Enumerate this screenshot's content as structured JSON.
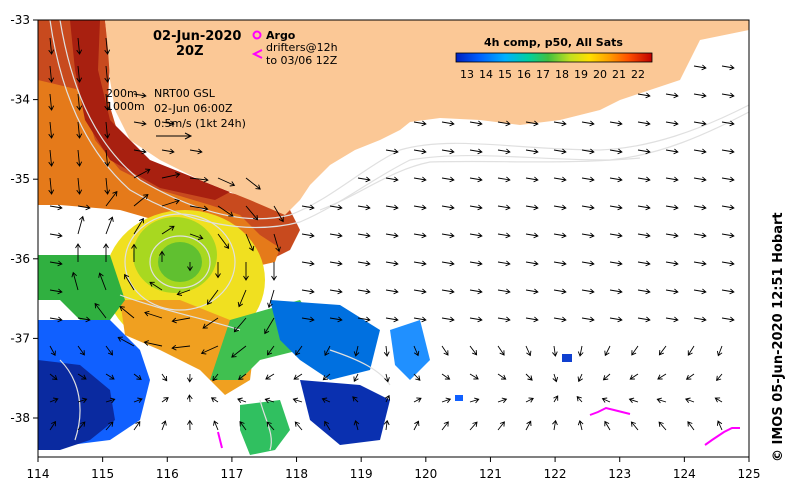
{
  "map": {
    "date_label": "02-Jun-2020",
    "time_label": "20Z",
    "legend_argo": "Argo",
    "legend_drifters_1": "drifters@12h",
    "legend_drifters_2": "to 03/06 12Z",
    "isobath_200": "200m",
    "isobath_1000": "1000m",
    "current_product": "NRT00 GSL",
    "current_time": "02-Jun 06:00Z",
    "vector_scale": "0.5m/s (1kt 24h)",
    "credit": "© IMOS 05-Jun-2020 12:51 Hobart",
    "colors": {
      "land": "#fbc896",
      "frame": "#000000",
      "drifter": "#ff00ff",
      "vector": "#000000"
    }
  },
  "colorbar": {
    "title": "4h comp, p50, All Sats",
    "ticks": [
      "13",
      "14",
      "15",
      "16",
      "17",
      "18",
      "19",
      "20",
      "21",
      "22"
    ]
  },
  "axes": {
    "x_ticks": [
      "114",
      "115",
      "116",
      "117",
      "118",
      "119",
      "120",
      "121",
      "122",
      "123",
      "124",
      "125"
    ],
    "y_ticks": [
      "-33",
      "-34",
      "-35",
      "-36",
      "-37",
      "-38"
    ]
  }
}
